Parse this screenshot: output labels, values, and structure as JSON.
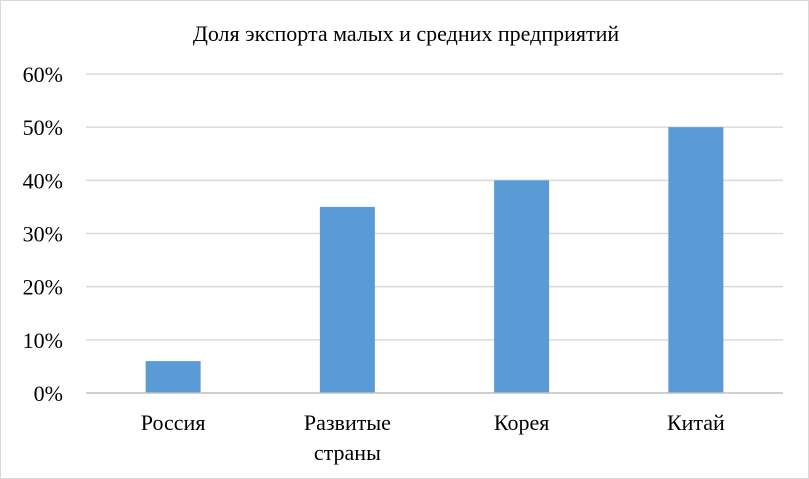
{
  "chart_data": {
    "type": "bar",
    "title": "Доля экспорта малых и средних предприятий",
    "categories": [
      [
        "Россия"
      ],
      [
        "Развитые",
        "страны"
      ],
      [
        "Корея"
      ],
      [
        "Китай"
      ]
    ],
    "values": [
      6,
      35,
      40,
      50
    ],
    "ylim": [
      0,
      60
    ],
    "yticks": [
      0,
      10,
      20,
      30,
      40,
      50,
      60
    ],
    "ytick_labels": [
      "0%",
      "10%",
      "20%",
      "30%",
      "40%",
      "50%",
      "60%"
    ],
    "grid": true,
    "legend": "none",
    "colors": {
      "bar": "#5B9BD5",
      "grid": "#D9D9D9",
      "axis": "#BFBFBF"
    }
  }
}
